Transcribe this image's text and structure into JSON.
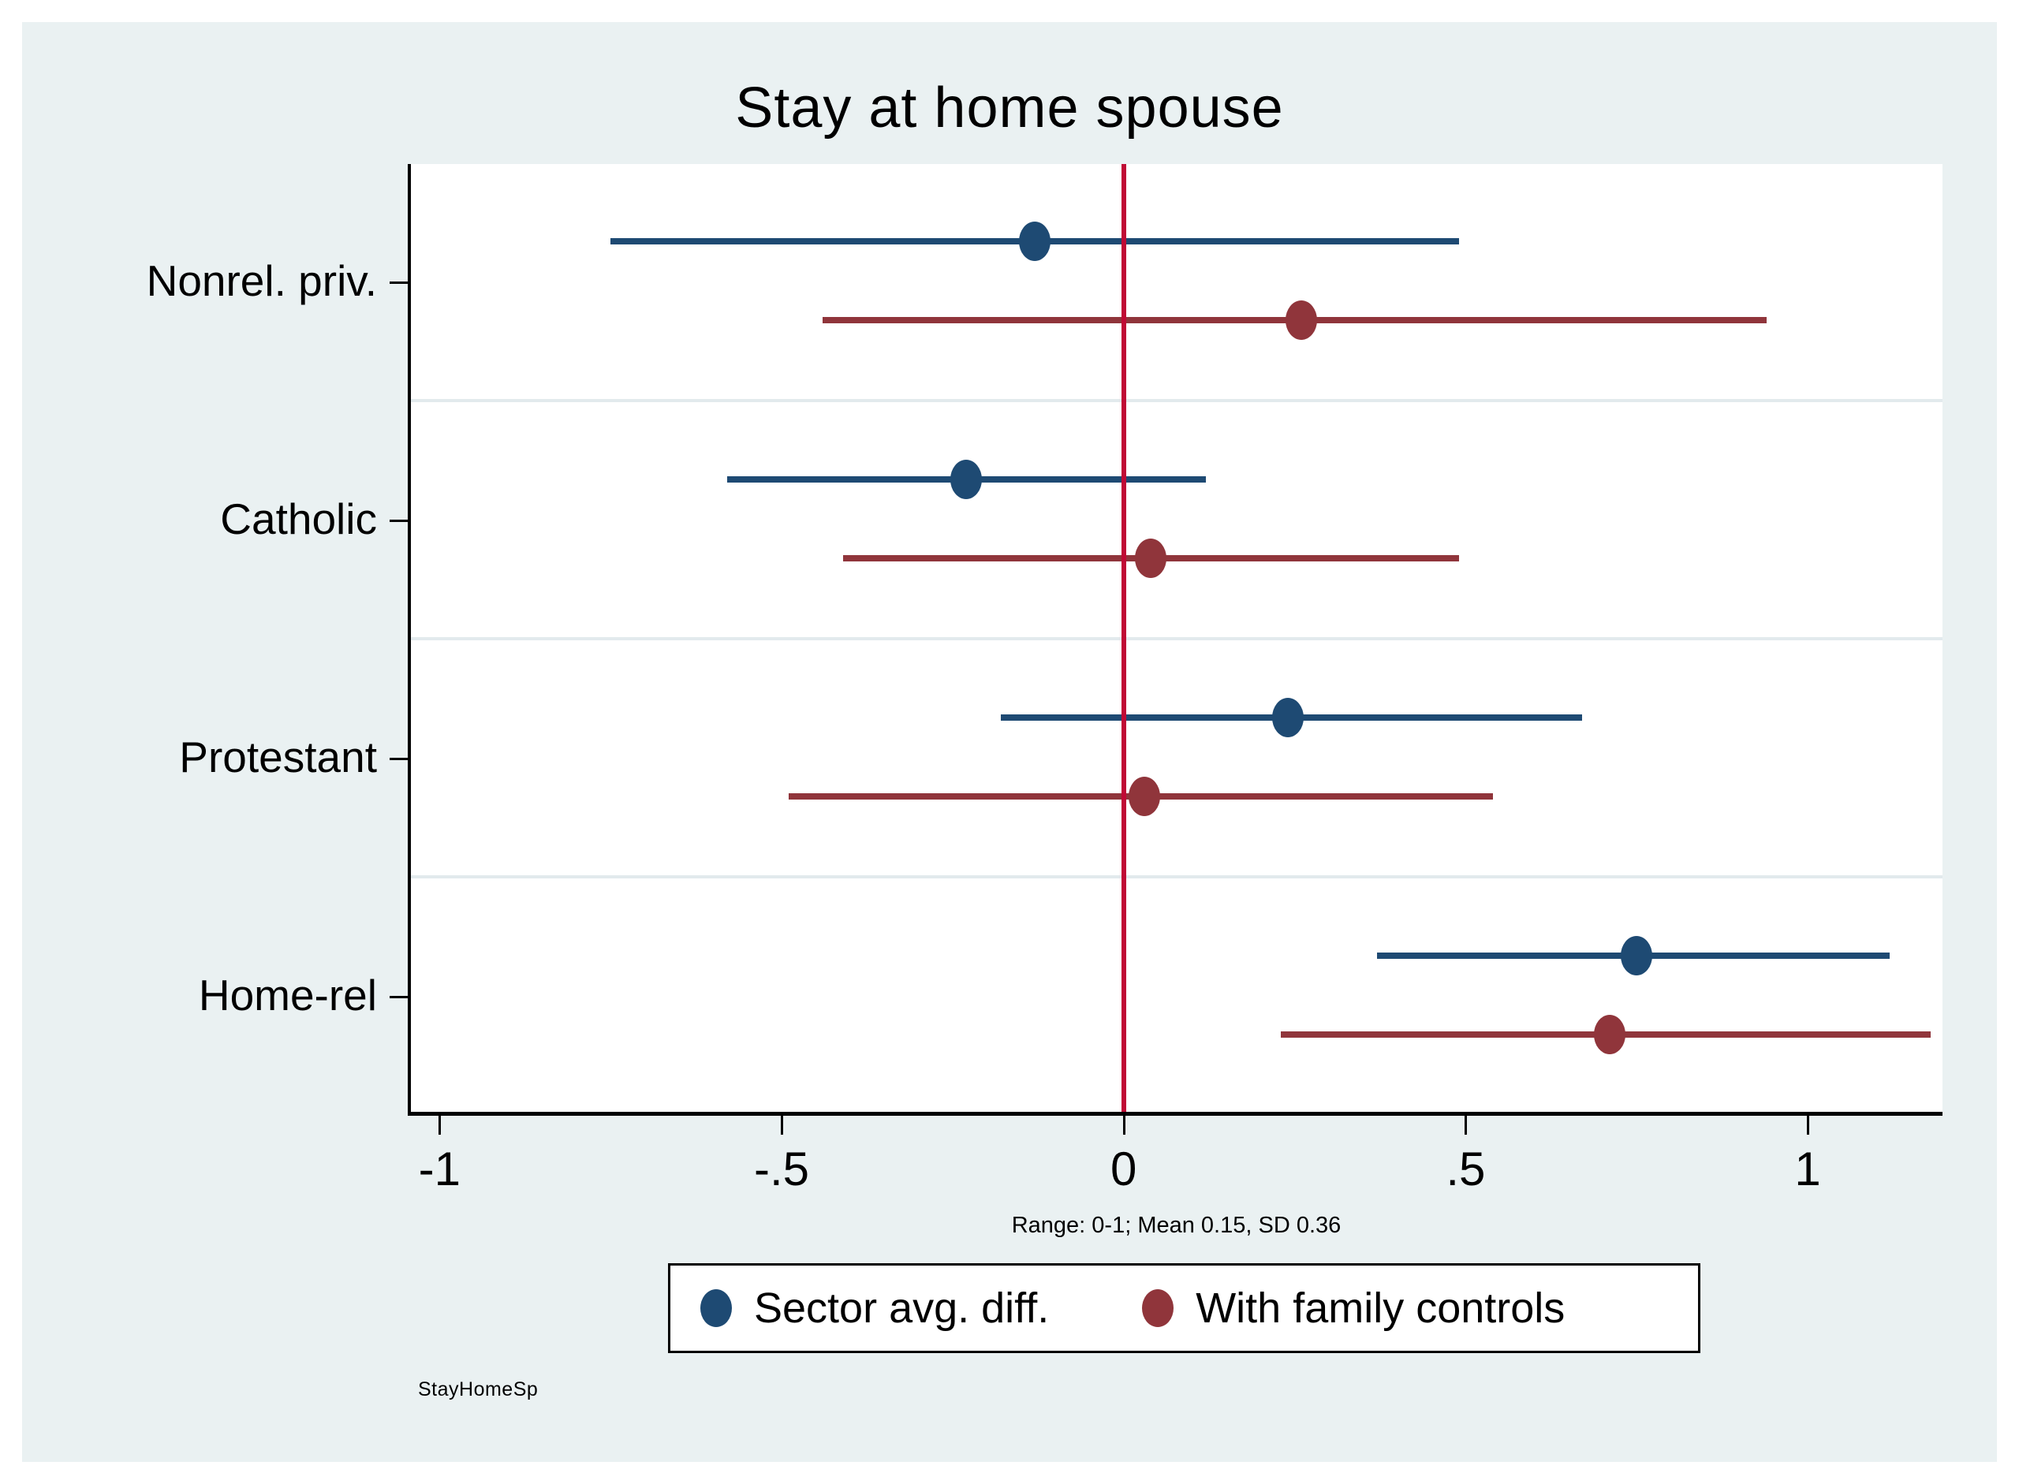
{
  "figure": {
    "title": "Stay at home spouse",
    "note": "Range: 0-1; Mean 0.15, SD 0.36",
    "watermark": "StayHomeSp"
  },
  "colors": {
    "graph_background": "#eaf1f2",
    "plot_background": "#ffffff",
    "navy_series": "#1e4a73",
    "maroon_series": "#90353b",
    "zero_line": "#c00a35",
    "gridline": "#e2eaed"
  },
  "chart_data": {
    "type": "scatter",
    "subtype": "coefficient-plot-with-ci",
    "title": "Stay at home spouse",
    "categories": [
      "Nonrel. priv.",
      "Catholic",
      "Protestant",
      "Home-rel"
    ],
    "series": [
      {
        "name": "Sector avg. diff.",
        "color": "#1e4a73",
        "points": [
          {
            "category": "Nonrel. priv.",
            "est": -0.13,
            "lo": -0.75,
            "hi": 0.49
          },
          {
            "category": "Catholic",
            "est": -0.23,
            "lo": -0.58,
            "hi": 0.12
          },
          {
            "category": "Protestant",
            "est": 0.24,
            "lo": -0.18,
            "hi": 0.67
          },
          {
            "category": "Home-rel",
            "est": 0.75,
            "lo": 0.37,
            "hi": 1.12
          }
        ]
      },
      {
        "name": "With family controls",
        "color": "#90353b",
        "points": [
          {
            "category": "Nonrel. priv.",
            "est": 0.26,
            "lo": -0.44,
            "hi": 0.94
          },
          {
            "category": "Catholic",
            "est": 0.04,
            "lo": -0.41,
            "hi": 0.49
          },
          {
            "category": "Protestant",
            "est": 0.03,
            "lo": -0.49,
            "hi": 0.54
          },
          {
            "category": "Home-rel",
            "est": 0.71,
            "lo": 0.23,
            "hi": 1.18
          }
        ]
      }
    ],
    "x_ticks": [
      -1,
      -0.5,
      0,
      0.5,
      1
    ],
    "x_tick_labels": [
      "-1",
      "-.5",
      "0",
      ".5",
      "1"
    ],
    "xlim": [
      -1.043,
      1.197
    ],
    "ref_line_x": 0,
    "grid": "category-separators",
    "legend_position": "bottom",
    "note": "Range: 0-1; Mean 0.15, SD 0.36"
  }
}
